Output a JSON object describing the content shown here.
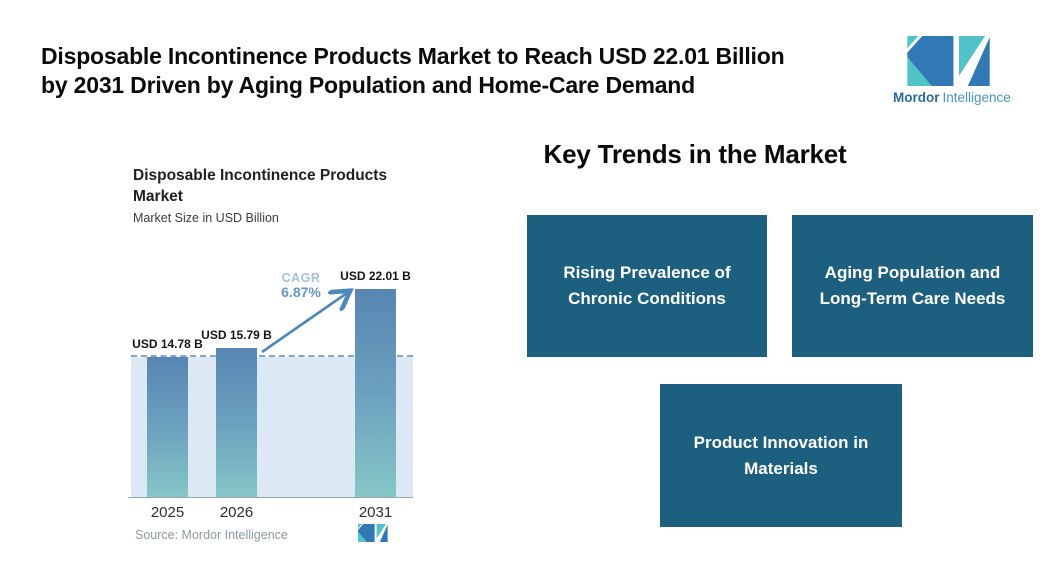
{
  "header": {
    "title_line1": "Disposable Incontinence Products Market to Reach USD 22.01 Billion",
    "title_line2": "by 2031 Driven by Aging Population and Home-Care Demand",
    "brand": {
      "name_bold": "Mordor",
      "name_light": "Intelligence"
    }
  },
  "chart": {
    "title_line1": "Disposable Incontinence Products",
    "title_line2": "Market",
    "subtitle": "Market Size in USD Billion",
    "cagr_label": "CAGR",
    "cagr_value": "6.87%",
    "source": "Source: Mordor Intelligence"
  },
  "chart_data": {
    "type": "bar",
    "title": "Disposable Incontinence Products Market",
    "subtitle": "Market Size in USD Billion",
    "xlabel": "",
    "ylabel": "Market Size in USD Billion",
    "categories": [
      "2025",
      "2026",
      "2031"
    ],
    "values": [
      14.78,
      15.79,
      22.01
    ],
    "value_labels": [
      "USD 14.78 B",
      "USD 15.79 B",
      "USD 22.01 B"
    ],
    "ylim": [
      0,
      22.01
    ],
    "grid": false,
    "legend": "none",
    "annotations": [
      "CAGR 6.87% arrow from 2026 bar to 2031 bar",
      "horizontal dashed reference line at 2025 value (14.78)",
      "light blue shaded band below dashed line"
    ]
  },
  "trends": {
    "heading": "Key Trends in the Market",
    "items": [
      "Rising Prevalence of Chronic Conditions",
      "Aging Population and Long-Term Care Needs",
      "Product Innovation in Materials"
    ]
  },
  "colors": {
    "trend_box_bg": "#1d5f7f",
    "bar_gradient_top": "#5885b3",
    "bar_gradient_bottom": "#85c7c7",
    "band": "#dce8f3",
    "dashed_line": "#80aacb",
    "arrow": "#4e89bc",
    "cagr_label": "#a3c2dc",
    "cagr_value": "#6598c6",
    "brand_blue": "#3179b5",
    "brand_teal": "#4fc3c5",
    "source_text": "#8d9aa4"
  }
}
